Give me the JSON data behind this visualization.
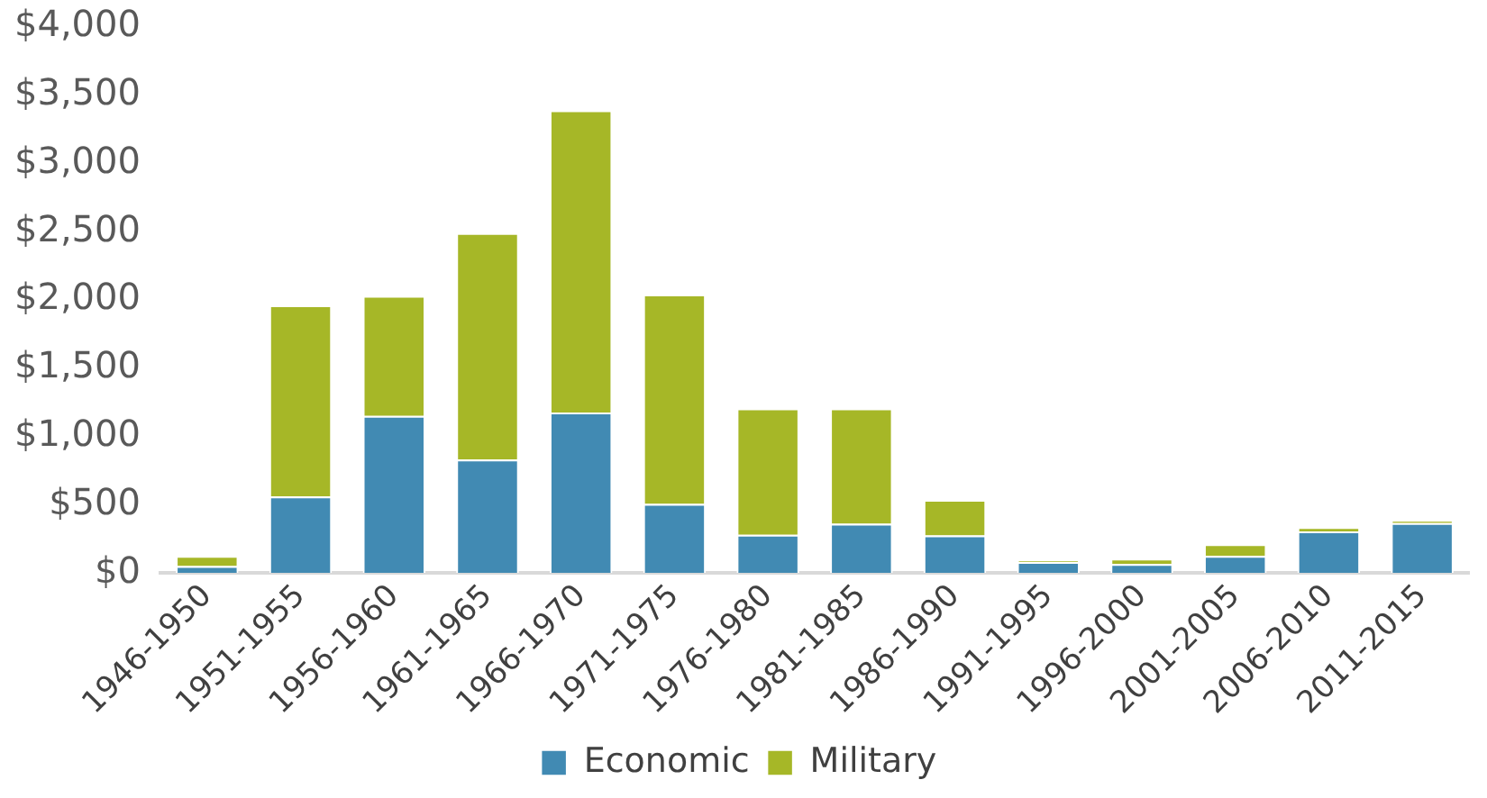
{
  "chart_data": {
    "type": "bar",
    "stacked": true,
    "categories": [
      "1946-1950",
      "1951-1955",
      "1956-1960",
      "1961-1965",
      "1966-1970",
      "1971-1975",
      "1976-1980",
      "1981-1985",
      "1986-1990",
      "1991-1995",
      "1996-2000",
      "2001-2005",
      "2006-2010",
      "2011-2015"
    ],
    "series": [
      {
        "name": "Economic",
        "color": "#418ab3",
        "values": [
          50,
          560,
          1150,
          830,
          1175,
          505,
          280,
          360,
          275,
          80,
          65,
          125,
          305,
          365
        ]
      },
      {
        "name": "Military",
        "color": "#a6b727",
        "values": [
          75,
          1400,
          880,
          1660,
          2215,
          1535,
          925,
          845,
          260,
          10,
          40,
          85,
          30,
          20
        ]
      }
    ],
    "ylim": [
      0,
      4000
    ],
    "yticks": [
      {
        "value": 0,
        "label": "$0"
      },
      {
        "value": 500,
        "label": "$500"
      },
      {
        "value": 1000,
        "label": "$1,000"
      },
      {
        "value": 1500,
        "label": "$1,500"
      },
      {
        "value": 2000,
        "label": "$2,000"
      },
      {
        "value": 2500,
        "label": "$2,500"
      },
      {
        "value": 3000,
        "label": "$3,000"
      },
      {
        "value": 3500,
        "label": "$3,500"
      },
      {
        "value": 4000,
        "label": "$4,000"
      }
    ],
    "grid": false,
    "legend": "bottom"
  }
}
